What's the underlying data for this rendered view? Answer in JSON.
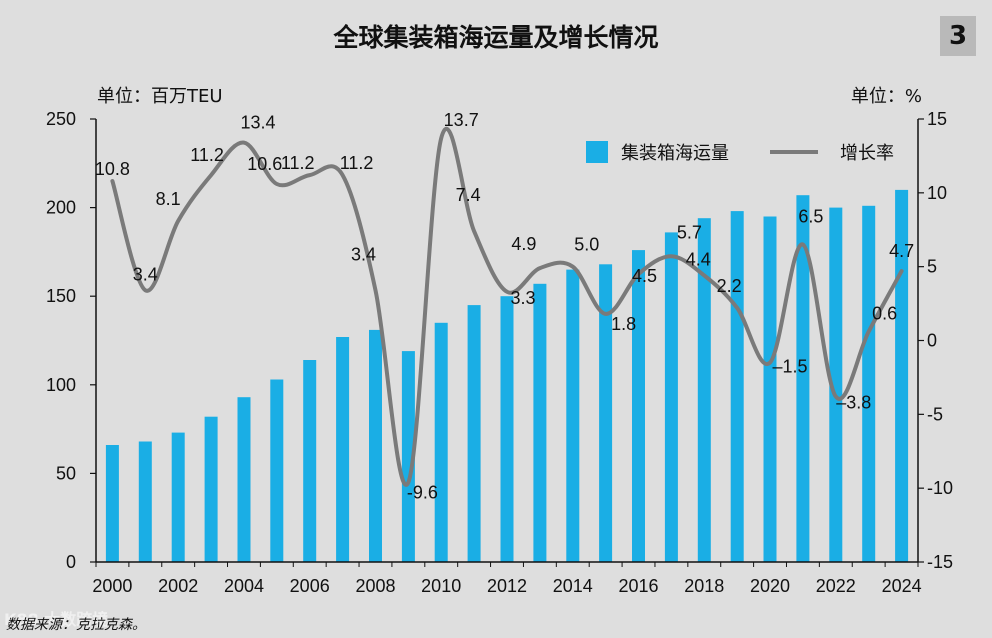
{
  "title": "全球集装箱海运量及增长情况",
  "badge": "3",
  "unit_left": "单位：百万TEU",
  "unit_right": "单位：%",
  "source": "数据来源：克拉克森。",
  "watermark": "K88 大数跨境",
  "colors": {
    "bar": "#1aaee5",
    "line": "#7a7a7a",
    "background": "#dedede",
    "axis": "#111111"
  },
  "chart_data": {
    "type": "bar+line",
    "title": "全球集装箱海运量及增长情况",
    "categories": [
      2000,
      2001,
      2002,
      2003,
      2004,
      2005,
      2006,
      2007,
      2008,
      2009,
      2010,
      2011,
      2012,
      2013,
      2014,
      2015,
      2016,
      2017,
      2018,
      2019,
      2020,
      2021,
      2022,
      2023,
      2024
    ],
    "x_tick_labels": [
      "2000",
      "2002",
      "2004",
      "2006",
      "2008",
      "2010",
      "2012",
      "2014",
      "2016",
      "2018",
      "2020",
      "2022",
      "2024"
    ],
    "series": [
      {
        "name": "集装箱海运量",
        "type": "bar",
        "axis": "left",
        "values": [
          66,
          68,
          73,
          82,
          93,
          103,
          114,
          127,
          131,
          119,
          135,
          145,
          150,
          157,
          165,
          168,
          176,
          186,
          194,
          198,
          195,
          207,
          200,
          201,
          210
        ]
      },
      {
        "name": "增长率",
        "type": "line",
        "axis": "right",
        "values": [
          10.8,
          3.4,
          8.1,
          11.2,
          13.4,
          10.6,
          11.2,
          11.2,
          3.4,
          -9.6,
          13.7,
          7.4,
          3.3,
          4.9,
          5.0,
          1.8,
          4.5,
          5.7,
          4.4,
          2.2,
          -1.5,
          6.5,
          -3.8,
          0.6,
          4.7
        ],
        "labels": [
          "10.8",
          "3.4",
          "8.1",
          "11.2",
          "13.4",
          "10.6",
          "11.2",
          "11.2",
          "3.4",
          "-9.6",
          "13.7",
          "7.4",
          "3.3",
          "4.9",
          "5.0",
          "1.8",
          "4.5",
          "5.7",
          "4.4",
          "2.2",
          "–1.5",
          "6.5",
          "–3.8",
          "0.6",
          "4.7"
        ]
      }
    ],
    "y_left": {
      "label": "单位：百万TEU",
      "min": 0,
      "max": 250,
      "ticks": [
        "0",
        "50",
        "100",
        "150",
        "200",
        "250"
      ]
    },
    "y_right": {
      "label": "单位：%",
      "min": -15,
      "max": 15,
      "ticks": [
        "15",
        "10",
        "5",
        "0",
        "-5",
        "-10",
        "-15"
      ]
    },
    "legend": {
      "position": "top-right",
      "items": [
        "集装箱海运量",
        "增长率"
      ]
    }
  }
}
